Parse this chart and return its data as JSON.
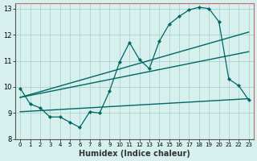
{
  "xlabel": "Humidex (Indice chaleur)",
  "bg_color": "#d6f0ee",
  "grid_color": "#b0d0ce",
  "line_color": "#006666",
  "border_top_right_color": "#cc6666",
  "xlim": [
    -0.5,
    23.5
  ],
  "ylim": [
    8,
    13.2
  ],
  "yticks": [
    8,
    9,
    10,
    11,
    12,
    13
  ],
  "xticks": [
    0,
    1,
    2,
    3,
    4,
    5,
    6,
    7,
    8,
    9,
    10,
    11,
    12,
    13,
    14,
    15,
    16,
    17,
    18,
    19,
    20,
    21,
    22,
    23
  ],
  "series1_x": [
    0,
    1,
    2,
    3,
    4,
    5,
    6,
    7,
    8,
    9,
    10,
    11,
    12,
    13,
    14,
    15,
    16,
    17,
    18,
    19,
    20,
    21,
    22,
    23
  ],
  "series1_y": [
    9.95,
    9.35,
    9.2,
    8.85,
    8.85,
    8.65,
    8.45,
    9.05,
    9.0,
    9.85,
    10.95,
    11.7,
    11.05,
    10.7,
    11.75,
    12.4,
    12.7,
    12.95,
    13.05,
    13.0,
    12.5,
    10.3,
    10.05,
    9.5
  ],
  "series2_x": [
    0,
    23
  ],
  "series2_y": [
    9.6,
    12.1
  ],
  "series3_x": [
    0,
    23
  ],
  "series3_y": [
    9.6,
    11.35
  ],
  "series4_x": [
    0,
    23
  ],
  "series4_y": [
    9.05,
    9.55
  ]
}
